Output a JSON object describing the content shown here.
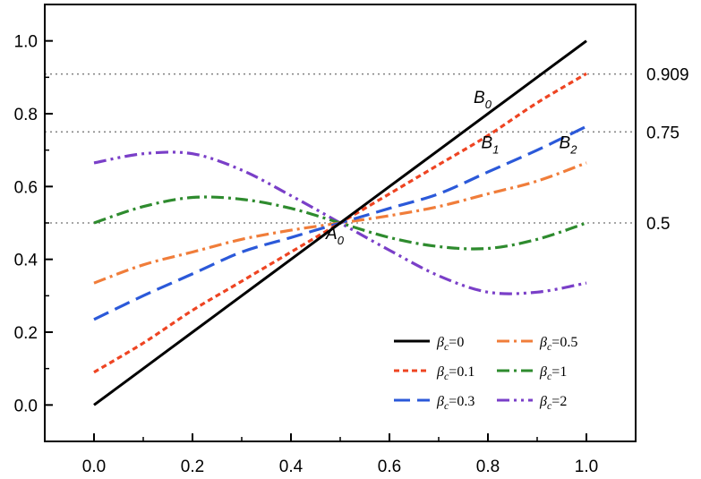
{
  "chart_data": {
    "type": "line",
    "title": "",
    "xlabel": "",
    "ylabel": "",
    "xlim": [
      -0.1,
      1.1
    ],
    "ylim": [
      -0.1,
      1.1
    ],
    "x_ticks": [
      0.0,
      0.2,
      0.4,
      0.6,
      0.8,
      1.0
    ],
    "x_tick_labels": [
      "0.0",
      "0.2",
      "0.4",
      "0.6",
      "0.8",
      "1.0"
    ],
    "y_ticks": [
      0.0,
      0.2,
      0.4,
      0.6,
      0.8,
      1.0
    ],
    "y_tick_labels": [
      "0.0",
      "0.2",
      "0.4",
      "0.6",
      "0.8",
      "1.0"
    ],
    "reference_lines": [
      {
        "y": 0.909,
        "label": "0.909"
      },
      {
        "y": 0.75,
        "label": "0.75"
      },
      {
        "y": 0.5,
        "label": "0.5"
      }
    ],
    "grid": false,
    "legend_position": "bottom-right",
    "series": [
      {
        "name": "βc=0",
        "legend_symbol": "β",
        "legend_sub": "c",
        "legend_value": "=0",
        "color": "#000000",
        "dash": "solid",
        "x": [
          0.0,
          0.1,
          0.2,
          0.3,
          0.4,
          0.5,
          0.6,
          0.7,
          0.8,
          0.9,
          1.0
        ],
        "y": [
          0.0,
          0.1,
          0.2,
          0.3,
          0.4,
          0.5,
          0.6,
          0.7,
          0.8,
          0.9,
          1.0
        ]
      },
      {
        "name": "βc=0.1",
        "legend_symbol": "β",
        "legend_sub": "c",
        "legend_value": "=0.1",
        "color": "#ee4422",
        "dash": "short-dash",
        "x": [
          0.0,
          0.1,
          0.2,
          0.3,
          0.4,
          0.5,
          0.6,
          0.7,
          0.8,
          0.9,
          1.0
        ],
        "y": [
          0.09,
          0.17,
          0.26,
          0.34,
          0.42,
          0.5,
          0.58,
          0.66,
          0.74,
          0.83,
          0.91
        ]
      },
      {
        "name": "βc=0.3",
        "legend_symbol": "β",
        "legend_sub": "c",
        "legend_value": "=0.3",
        "color": "#2b59d9",
        "dash": "long-dash",
        "x": [
          0.0,
          0.1,
          0.2,
          0.3,
          0.4,
          0.5,
          0.6,
          0.7,
          0.8,
          0.9,
          1.0
        ],
        "y": [
          0.235,
          0.3,
          0.36,
          0.42,
          0.46,
          0.5,
          0.54,
          0.58,
          0.64,
          0.7,
          0.765
        ]
      },
      {
        "name": "βc=0.5",
        "legend_symbol": "β",
        "legend_sub": "c",
        "legend_value": "=0.5",
        "color": "#f07d3a",
        "dash": "dash-dot",
        "x": [
          0.0,
          0.1,
          0.2,
          0.3,
          0.4,
          0.5,
          0.6,
          0.7,
          0.8,
          0.9,
          1.0
        ],
        "y": [
          0.335,
          0.385,
          0.42,
          0.455,
          0.48,
          0.5,
          0.52,
          0.545,
          0.58,
          0.615,
          0.665
        ]
      },
      {
        "name": "βc=1",
        "legend_symbol": "β",
        "legend_sub": "c",
        "legend_value": "=1",
        "color": "#2e8b2e",
        "dash": "dash-dot",
        "x": [
          0.0,
          0.1,
          0.2,
          0.3,
          0.4,
          0.5,
          0.6,
          0.7,
          0.8,
          0.9,
          1.0
        ],
        "y": [
          0.5,
          0.545,
          0.57,
          0.565,
          0.54,
          0.5,
          0.46,
          0.435,
          0.43,
          0.455,
          0.5
        ]
      },
      {
        "name": "βc=2",
        "legend_symbol": "β",
        "legend_sub": "c",
        "legend_value": "=2",
        "color": "#7a3fc8",
        "dash": "dash-dot-dot",
        "x": [
          0.0,
          0.1,
          0.2,
          0.3,
          0.4,
          0.5,
          0.6,
          0.7,
          0.8,
          0.9,
          1.0
        ],
        "y": [
          0.665,
          0.69,
          0.69,
          0.645,
          0.575,
          0.5,
          0.425,
          0.355,
          0.31,
          0.31,
          0.335
        ]
      }
    ],
    "annotations": [
      {
        "text": "A",
        "sub": "0",
        "x": 0.5,
        "y": 0.5
      },
      {
        "text": "B",
        "sub": "0",
        "x": 0.8,
        "y": 0.8
      },
      {
        "text": "B",
        "sub": "1",
        "x": 0.83,
        "y": 0.75
      },
      {
        "text": "B",
        "sub": "2",
        "x": 0.97,
        "y": 0.75
      }
    ]
  }
}
